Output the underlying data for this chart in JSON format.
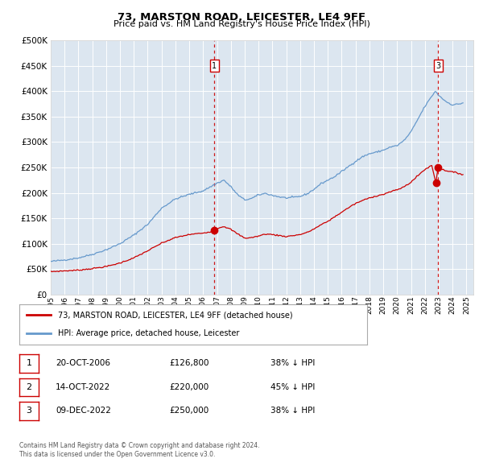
{
  "title": "73, MARSTON ROAD, LEICESTER, LE4 9FF",
  "subtitle": "Price paid vs. HM Land Registry's House Price Index (HPI)",
  "legend_line1": "73, MARSTON ROAD, LEICESTER, LE4 9FF (detached house)",
  "legend_line2": "HPI: Average price, detached house, Leicester",
  "footer1": "Contains HM Land Registry data © Crown copyright and database right 2024.",
  "footer2": "This data is licensed under the Open Government Licence v3.0.",
  "ylim": [
    0,
    500000
  ],
  "yticks": [
    0,
    50000,
    100000,
    150000,
    200000,
    250000,
    300000,
    350000,
    400000,
    450000,
    500000
  ],
  "xlim_start": 1995.0,
  "xlim_end": 2025.5,
  "xtick_years": [
    1995,
    1996,
    1997,
    1998,
    1999,
    2000,
    2001,
    2002,
    2003,
    2004,
    2005,
    2006,
    2007,
    2008,
    2009,
    2010,
    2011,
    2012,
    2013,
    2014,
    2015,
    2016,
    2017,
    2018,
    2019,
    2020,
    2021,
    2022,
    2023,
    2024,
    2025
  ],
  "sale_events": [
    {
      "id": 1,
      "date": "20-OCT-2006",
      "price": 126800,
      "year_x": 2006.8,
      "pct": "38%",
      "dir": "↓"
    },
    {
      "id": 2,
      "date": "14-OCT-2022",
      "price": 220000,
      "year_x": 2022.8,
      "pct": "45%",
      "dir": "↓"
    },
    {
      "id": 3,
      "date": "09-DEC-2022",
      "price": 250000,
      "year_x": 2022.95,
      "pct": "38%",
      "dir": "↓"
    }
  ],
  "vline_ids": [
    1,
    3
  ],
  "vline_color": "#cc0000",
  "hpi_color": "#6699cc",
  "price_color": "#cc0000",
  "dot_color": "#cc0000",
  "plot_bg": "#dce6f0",
  "grid_color": "#ffffff"
}
